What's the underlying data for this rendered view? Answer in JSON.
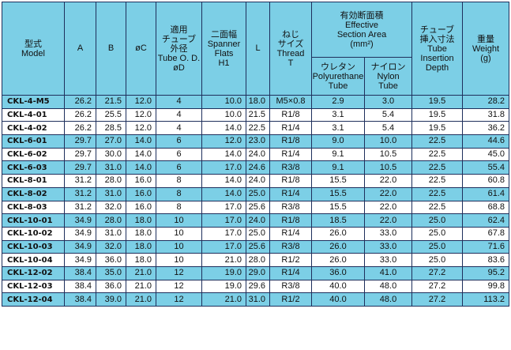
{
  "headers": {
    "model": [
      "型式",
      "Model"
    ],
    "a": "A",
    "b": "B",
    "c": "øC",
    "tube_od": [
      "適用",
      "チューブ",
      "外径",
      "Tube O. D.",
      "øD"
    ],
    "spanner": [
      "二面幅",
      "Spanner",
      "Flats",
      "H1"
    ],
    "l": "L",
    "thread": [
      "ねじ",
      "サイズ",
      "Thread",
      "T"
    ],
    "section": [
      "有効断面積",
      "Effective",
      "Section Area",
      "(mm²)"
    ],
    "urethane": [
      "ウレタン",
      "Polyurethane",
      "Tube"
    ],
    "nylon": [
      "ナイロン",
      "Nylon",
      "Tube"
    ],
    "insertion": [
      "チューブ",
      "挿入寸法",
      "Tube",
      "Insertion",
      "Depth"
    ],
    "weight": [
      "重量",
      "Weight",
      "(g)"
    ]
  },
  "rows": [
    {
      "model": "CKL-4-M5",
      "a": "26.2",
      "b": "21.5",
      "c": "12.0",
      "d": "4",
      "h1": "10.0",
      "l": "18.0",
      "t": "M5×0.8",
      "ure": "2.9",
      "nyl": "3.0",
      "ins": "19.5",
      "w": "28.2"
    },
    {
      "model": "CKL-4-01",
      "a": "26.2",
      "b": "25.5",
      "c": "12.0",
      "d": "4",
      "h1": "10.0",
      "l": "21.5",
      "t": "R1/8",
      "ure": "3.1",
      "nyl": "5.4",
      "ins": "19.5",
      "w": "31.8"
    },
    {
      "model": "CKL-4-02",
      "a": "26.2",
      "b": "28.5",
      "c": "12.0",
      "d": "4",
      "h1": "14.0",
      "l": "22.5",
      "t": "R1/4",
      "ure": "3.1",
      "nyl": "5.4",
      "ins": "19.5",
      "w": "36.2"
    },
    {
      "model": "CKL-6-01",
      "a": "29.7",
      "b": "27.0",
      "c": "14.0",
      "d": "6",
      "h1": "12.0",
      "l": "23.0",
      "t": "R1/8",
      "ure": "9.0",
      "nyl": "10.0",
      "ins": "22.5",
      "w": "44.6"
    },
    {
      "model": "CKL-6-02",
      "a": "29.7",
      "b": "30.0",
      "c": "14.0",
      "d": "6",
      "h1": "14.0",
      "l": "24.0",
      "t": "R1/4",
      "ure": "9.1",
      "nyl": "10.5",
      "ins": "22.5",
      "w": "45.0"
    },
    {
      "model": "CKL-6-03",
      "a": "29.7",
      "b": "31.0",
      "c": "14.0",
      "d": "6",
      "h1": "17.0",
      "l": "24.6",
      "t": "R3/8",
      "ure": "9.1",
      "nyl": "10.5",
      "ins": "22.5",
      "w": "55.4"
    },
    {
      "model": "CKL-8-01",
      "a": "31.2",
      "b": "28.0",
      "c": "16.0",
      "d": "8",
      "h1": "14.0",
      "l": "24.0",
      "t": "R1/8",
      "ure": "15.5",
      "nyl": "22.0",
      "ins": "22.5",
      "w": "60.8"
    },
    {
      "model": "CKL-8-02",
      "a": "31.2",
      "b": "31.0",
      "c": "16.0",
      "d": "8",
      "h1": "14.0",
      "l": "25.0",
      "t": "R1/4",
      "ure": "15.5",
      "nyl": "22.0",
      "ins": "22.5",
      "w": "61.4"
    },
    {
      "model": "CKL-8-03",
      "a": "31.2",
      "b": "32.0",
      "c": "16.0",
      "d": "8",
      "h1": "17.0",
      "l": "25.6",
      "t": "R3/8",
      "ure": "15.5",
      "nyl": "22.0",
      "ins": "22.5",
      "w": "68.8"
    },
    {
      "model": "CKL-10-01",
      "a": "34.9",
      "b": "28.0",
      "c": "18.0",
      "d": "10",
      "h1": "17.0",
      "l": "24.0",
      "t": "R1/8",
      "ure": "18.5",
      "nyl": "22.0",
      "ins": "25.0",
      "w": "62.4"
    },
    {
      "model": "CKL-10-02",
      "a": "34.9",
      "b": "31.0",
      "c": "18.0",
      "d": "10",
      "h1": "17.0",
      "l": "25.0",
      "t": "R1/4",
      "ure": "26.0",
      "nyl": "33.0",
      "ins": "25.0",
      "w": "67.8"
    },
    {
      "model": "CKL-10-03",
      "a": "34.9",
      "b": "32.0",
      "c": "18.0",
      "d": "10",
      "h1": "17.0",
      "l": "25.6",
      "t": "R3/8",
      "ure": "26.0",
      "nyl": "33.0",
      "ins": "25.0",
      "w": "71.6"
    },
    {
      "model": "CKL-10-04",
      "a": "34.9",
      "b": "36.0",
      "c": "18.0",
      "d": "10",
      "h1": "21.0",
      "l": "28.0",
      "t": "R1/2",
      "ure": "26.0",
      "nyl": "33.0",
      "ins": "25.0",
      "w": "83.6"
    },
    {
      "model": "CKL-12-02",
      "a": "38.4",
      "b": "35.0",
      "c": "21.0",
      "d": "12",
      "h1": "19.0",
      "l": "29.0",
      "t": "R1/4",
      "ure": "36.0",
      "nyl": "41.0",
      "ins": "27.2",
      "w": "95.2"
    },
    {
      "model": "CKL-12-03",
      "a": "38.4",
      "b": "36.0",
      "c": "21.0",
      "d": "12",
      "h1": "19.0",
      "l": "29.6",
      "t": "R3/8",
      "ure": "40.0",
      "nyl": "48.0",
      "ins": "27.2",
      "w": "99.8"
    },
    {
      "model": "CKL-12-04",
      "a": "38.4",
      "b": "39.0",
      "c": "21.0",
      "d": "12",
      "h1": "21.0",
      "l": "31.0",
      "t": "R1/2",
      "ure": "40.0",
      "nyl": "48.0",
      "ins": "27.2",
      "w": "113.2"
    }
  ],
  "colors": {
    "header_bg": "#7ccfe6",
    "alt_row_bg": "#7ccfe6",
    "border": "#1e2f5c",
    "row_bg": "#ffffff"
  }
}
